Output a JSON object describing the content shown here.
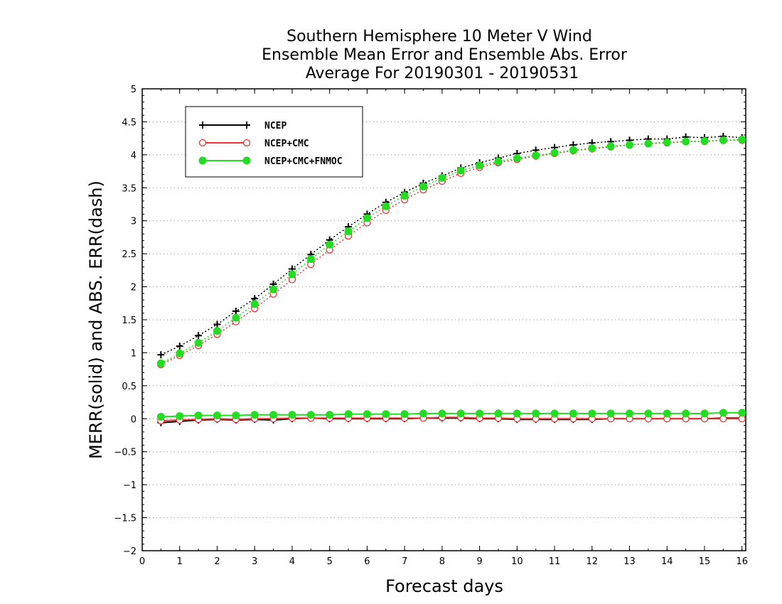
{
  "chart_data": {
    "type": "line",
    "title": [
      "Southern Hemisphere 10 Meter V Wind",
      "Ensemble Mean Error and Ensemble Abs. Error",
      "Average For 20190301 - 20190531"
    ],
    "xlabel": "Forecast days",
    "ylabel": "MERR(solid) and ABS. ERR(dash)",
    "xlim": [
      0,
      16.1
    ],
    "ylim": [
      -2,
      5
    ],
    "xticks": [
      0,
      1,
      2,
      3,
      4,
      5,
      6,
      7,
      8,
      9,
      10,
      11,
      12,
      13,
      14,
      15,
      16
    ],
    "yticks": [
      -2,
      -1.5,
      -1,
      -0.5,
      0,
      0.5,
      1,
      1.5,
      2,
      2.5,
      3,
      3.5,
      4,
      4.5,
      5
    ],
    "xtick_labels": [
      "0",
      "1",
      "2",
      "3",
      "4",
      "5",
      "6",
      "7",
      "8",
      "9",
      "10",
      "11",
      "12",
      "13",
      "14",
      "15",
      "16"
    ],
    "ytick_labels": [
      "−2",
      "−1.5",
      "−1",
      "−0.5",
      "0",
      "0.5",
      "1",
      "1.5",
      "2",
      "2.5",
      "3",
      "3.5",
      "4",
      "4.5",
      "5"
    ],
    "grid": "dotted horizontal",
    "legend_position": "top-left",
    "x": [
      0.5,
      1,
      1.5,
      2,
      2.5,
      3,
      3.5,
      4,
      4.5,
      5,
      5.5,
      6,
      6.5,
      7,
      7.5,
      8,
      8.5,
      9,
      9.5,
      10,
      10.5,
      11,
      11.5,
      12,
      12.5,
      13,
      13.5,
      14,
      14.5,
      15,
      15.5,
      16
    ],
    "series": [
      {
        "name": "NCEP",
        "marker": "plus",
        "color": "#000000",
        "abs_error": [
          0.97,
          1.1,
          1.26,
          1.43,
          1.63,
          1.82,
          2.04,
          2.27,
          2.49,
          2.71,
          2.91,
          3.1,
          3.28,
          3.43,
          3.57,
          3.68,
          3.8,
          3.88,
          3.95,
          4.02,
          4.07,
          4.11,
          4.15,
          4.18,
          4.2,
          4.22,
          4.24,
          4.24,
          4.27,
          4.26,
          4.28,
          4.26
        ],
        "mean_error": [
          -0.06,
          -0.04,
          -0.02,
          -0.01,
          -0.02,
          -0.01,
          -0.02,
          0.0,
          0.01,
          0.0,
          0.0,
          0.0,
          0.0,
          0.0,
          0.01,
          0.01,
          0.01,
          0.0,
          0.0,
          -0.01,
          -0.01,
          -0.01,
          -0.01,
          -0.01,
          0.0,
          0.0,
          0.0,
          0.0,
          0.0,
          0.0,
          0.01,
          0.01
        ]
      },
      {
        "name": "NCEP+CMC",
        "marker": "open-circle",
        "color": "#ee3333",
        "abs_error": [
          0.82,
          0.96,
          1.11,
          1.28,
          1.47,
          1.67,
          1.89,
          2.11,
          2.34,
          2.56,
          2.77,
          2.97,
          3.16,
          3.32,
          3.47,
          3.6,
          3.72,
          3.81,
          3.88,
          3.93,
          3.98,
          4.02,
          4.06,
          4.09,
          4.12,
          4.15,
          4.17,
          4.18,
          4.2,
          4.2,
          4.22,
          4.22
        ],
        "mean_error": [
          -0.03,
          -0.02,
          -0.01,
          0.0,
          -0.01,
          0.0,
          0.0,
          0.01,
          0.01,
          0.01,
          0.01,
          0.01,
          0.01,
          0.01,
          0.01,
          0.02,
          0.02,
          0.01,
          0.01,
          0.0,
          0.0,
          0.0,
          0.0,
          0.0,
          0.0,
          0.0,
          0.0,
          0.0,
          0.0,
          0.0,
          0.0,
          0.0
        ]
      },
      {
        "name": "NCEP+CMC+FNMOC",
        "marker": "filled-circle",
        "color": "#22dd22",
        "abs_error": [
          0.84,
          0.99,
          1.15,
          1.33,
          1.53,
          1.74,
          1.96,
          2.19,
          2.42,
          2.64,
          2.84,
          3.04,
          3.22,
          3.38,
          3.52,
          3.65,
          3.76,
          3.84,
          3.9,
          3.95,
          3.99,
          4.03,
          4.07,
          4.1,
          4.13,
          4.15,
          4.17,
          4.19,
          4.2,
          4.21,
          4.22,
          4.23
        ],
        "mean_error": [
          0.03,
          0.04,
          0.05,
          0.05,
          0.05,
          0.06,
          0.06,
          0.06,
          0.06,
          0.06,
          0.07,
          0.07,
          0.07,
          0.07,
          0.08,
          0.08,
          0.08,
          0.08,
          0.08,
          0.08,
          0.08,
          0.08,
          0.08,
          0.08,
          0.08,
          0.08,
          0.08,
          0.08,
          0.08,
          0.08,
          0.09,
          0.09
        ]
      }
    ]
  }
}
